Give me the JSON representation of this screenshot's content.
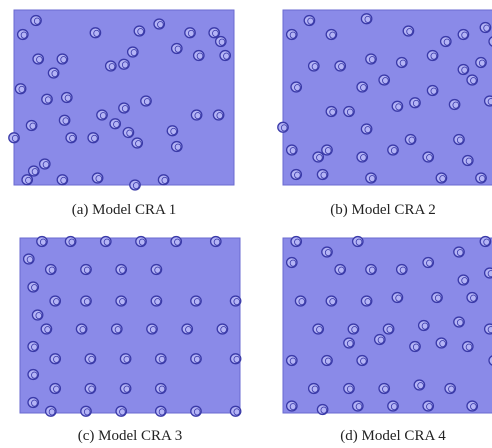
{
  "colors": {
    "block": "#8a8ae8",
    "block_edge": "#6a6ad0",
    "hole_fill": "#b4b4f6",
    "hole_stroke": "#3a3aa8"
  },
  "panels": [
    {
      "id": "a",
      "caption": "(a) Model CRA 1",
      "layout": "random",
      "holes": [
        [
          0.1,
          0.06
        ],
        [
          0.04,
          0.14
        ],
        [
          0.37,
          0.13
        ],
        [
          0.57,
          0.12
        ],
        [
          0.66,
          0.08
        ],
        [
          0.8,
          0.13
        ],
        [
          0.91,
          0.13
        ],
        [
          0.94,
          0.18
        ],
        [
          0.74,
          0.22
        ],
        [
          0.84,
          0.26
        ],
        [
          0.96,
          0.26
        ],
        [
          0.54,
          0.24
        ],
        [
          0.5,
          0.31
        ],
        [
          0.44,
          0.32
        ],
        [
          0.11,
          0.28
        ],
        [
          0.22,
          0.28
        ],
        [
          0.18,
          0.36
        ],
        [
          0.03,
          0.45
        ],
        [
          0.15,
          0.51
        ],
        [
          0.24,
          0.5
        ],
        [
          0.5,
          0.56
        ],
        [
          0.6,
          0.52
        ],
        [
          0.4,
          0.6
        ],
        [
          0.23,
          0.63
        ],
        [
          0.08,
          0.66
        ],
        [
          0.46,
          0.65
        ],
        [
          0.0,
          0.73
        ],
        [
          0.26,
          0.73
        ],
        [
          0.36,
          0.73
        ],
        [
          0.52,
          0.7
        ],
        [
          0.56,
          0.76
        ],
        [
          0.72,
          0.69
        ],
        [
          0.83,
          0.6
        ],
        [
          0.93,
          0.6
        ],
        [
          0.74,
          0.78
        ],
        [
          0.14,
          0.88
        ],
        [
          0.09,
          0.92
        ],
        [
          0.06,
          0.97
        ],
        [
          0.22,
          0.97
        ],
        [
          0.38,
          0.96
        ],
        [
          0.55,
          1.0
        ],
        [
          0.68,
          0.97
        ]
      ]
    },
    {
      "id": "b",
      "caption": "(b) Model CRA 2",
      "layout": "random",
      "holes": [
        [
          0.12,
          0.06
        ],
        [
          0.04,
          0.14
        ],
        [
          0.22,
          0.14
        ],
        [
          0.38,
          0.05
        ],
        [
          0.57,
          0.12
        ],
        [
          0.74,
          0.18
        ],
        [
          0.82,
          0.14
        ],
        [
          0.92,
          0.1
        ],
        [
          0.96,
          0.18
        ],
        [
          0.4,
          0.28
        ],
        [
          0.54,
          0.3
        ],
        [
          0.68,
          0.26
        ],
        [
          0.82,
          0.34
        ],
        [
          0.9,
          0.3
        ],
        [
          0.14,
          0.32
        ],
        [
          0.26,
          0.32
        ],
        [
          0.06,
          0.44
        ],
        [
          0.36,
          0.44
        ],
        [
          0.46,
          0.4
        ],
        [
          0.68,
          0.46
        ],
        [
          0.86,
          0.4
        ],
        [
          0.22,
          0.58
        ],
        [
          0.3,
          0.58
        ],
        [
          0.52,
          0.55
        ],
        [
          0.6,
          0.53
        ],
        [
          0.78,
          0.54
        ],
        [
          0.94,
          0.52
        ],
        [
          0.0,
          0.67
        ],
        [
          0.38,
          0.68
        ],
        [
          0.58,
          0.74
        ],
        [
          0.8,
          0.74
        ],
        [
          0.04,
          0.8
        ],
        [
          0.16,
          0.84
        ],
        [
          0.2,
          0.8
        ],
        [
          0.36,
          0.84
        ],
        [
          0.5,
          0.8
        ],
        [
          0.66,
          0.84
        ],
        [
          0.84,
          0.86
        ],
        [
          0.06,
          0.94
        ],
        [
          0.18,
          0.94
        ],
        [
          0.4,
          0.96
        ],
        [
          0.72,
          0.96
        ],
        [
          0.9,
          0.96
        ]
      ]
    },
    {
      "id": "c",
      "caption": "(c) Model CRA 3",
      "layout": "grid",
      "holes": [
        [
          0.1,
          0.02
        ],
        [
          0.23,
          0.02
        ],
        [
          0.39,
          0.02
        ],
        [
          0.55,
          0.02
        ],
        [
          0.71,
          0.02
        ],
        [
          0.89,
          0.02
        ],
        [
          0.04,
          0.12
        ],
        [
          0.14,
          0.18
        ],
        [
          0.3,
          0.18
        ],
        [
          0.46,
          0.18
        ],
        [
          0.62,
          0.18
        ],
        [
          0.06,
          0.28
        ],
        [
          0.16,
          0.36
        ],
        [
          0.3,
          0.36
        ],
        [
          0.46,
          0.36
        ],
        [
          0.62,
          0.36
        ],
        [
          0.8,
          0.36
        ],
        [
          0.98,
          0.36
        ],
        [
          0.08,
          0.44
        ],
        [
          0.12,
          0.52
        ],
        [
          0.28,
          0.52
        ],
        [
          0.44,
          0.52
        ],
        [
          0.6,
          0.52
        ],
        [
          0.76,
          0.52
        ],
        [
          0.92,
          0.52
        ],
        [
          0.06,
          0.62
        ],
        [
          0.16,
          0.69
        ],
        [
          0.32,
          0.69
        ],
        [
          0.48,
          0.69
        ],
        [
          0.64,
          0.69
        ],
        [
          0.8,
          0.69
        ],
        [
          0.98,
          0.69
        ],
        [
          0.06,
          0.78
        ],
        [
          0.16,
          0.86
        ],
        [
          0.32,
          0.86
        ],
        [
          0.48,
          0.86
        ],
        [
          0.64,
          0.86
        ],
        [
          0.06,
          0.94
        ],
        [
          0.14,
          0.99
        ],
        [
          0.3,
          0.99
        ],
        [
          0.46,
          0.99
        ],
        [
          0.64,
          0.99
        ],
        [
          0.8,
          0.99
        ],
        [
          0.98,
          0.99
        ]
      ]
    },
    {
      "id": "d",
      "caption": "(d) Model CRA 4",
      "layout": "semi-random",
      "holes": [
        [
          0.06,
          0.02
        ],
        [
          0.2,
          0.08
        ],
        [
          0.34,
          0.02
        ],
        [
          0.66,
          0.14
        ],
        [
          0.8,
          0.08
        ],
        [
          0.92,
          0.02
        ],
        [
          0.04,
          0.14
        ],
        [
          0.26,
          0.18
        ],
        [
          0.4,
          0.18
        ],
        [
          0.54,
          0.18
        ],
        [
          0.82,
          0.24
        ],
        [
          0.94,
          0.2
        ],
        [
          0.08,
          0.36
        ],
        [
          0.22,
          0.36
        ],
        [
          0.38,
          0.36
        ],
        [
          0.52,
          0.34
        ],
        [
          0.7,
          0.34
        ],
        [
          0.86,
          0.34
        ],
        [
          0.98,
          0.32
        ],
        [
          0.16,
          0.52
        ],
        [
          0.32,
          0.52
        ],
        [
          0.48,
          0.52
        ],
        [
          0.64,
          0.5
        ],
        [
          0.8,
          0.48
        ],
        [
          0.94,
          0.52
        ],
        [
          0.3,
          0.6
        ],
        [
          0.44,
          0.58
        ],
        [
          0.6,
          0.62
        ],
        [
          0.72,
          0.6
        ],
        [
          0.84,
          0.62
        ],
        [
          0.04,
          0.7
        ],
        [
          0.2,
          0.7
        ],
        [
          0.36,
          0.7
        ],
        [
          0.96,
          0.7
        ],
        [
          0.14,
          0.86
        ],
        [
          0.3,
          0.86
        ],
        [
          0.46,
          0.86
        ],
        [
          0.62,
          0.84
        ],
        [
          0.76,
          0.86
        ],
        [
          0.04,
          0.96
        ],
        [
          0.18,
          0.98
        ],
        [
          0.34,
          0.96
        ],
        [
          0.5,
          0.96
        ],
        [
          0.66,
          0.96
        ],
        [
          0.86,
          0.96
        ],
        [
          0.98,
          0.96
        ]
      ]
    }
  ]
}
